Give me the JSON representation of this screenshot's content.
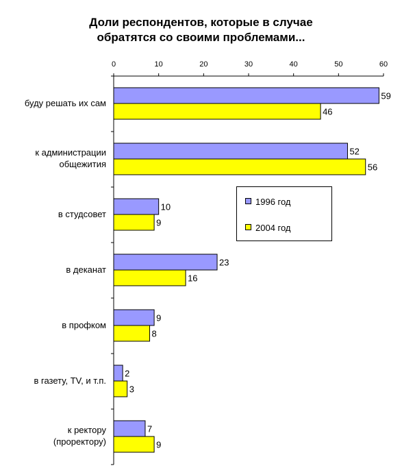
{
  "chart_data": {
    "type": "bar",
    "orientation": "horizontal",
    "title": [
      "Доли респондентов, которые в случае",
      "обратятся со своими проблемами..."
    ],
    "xlim": [
      0,
      60
    ],
    "x_ticks": [
      0,
      10,
      20,
      30,
      40,
      50,
      60
    ],
    "x_axis_position": "top",
    "grid": false,
    "legend_position": "right",
    "categories": [
      [
        "буду решать их сам"
      ],
      [
        "к администрации",
        "общежития"
      ],
      [
        "в студсовет"
      ],
      [
        "в деканат"
      ],
      [
        "в профком"
      ],
      [
        "в газету, TV, и т.п."
      ],
      [
        "к ректору",
        "(проректору)"
      ]
    ],
    "series": [
      {
        "name": "1996 год",
        "color": "#9999ff",
        "values": [
          59,
          52,
          10,
          23,
          9,
          2,
          7
        ]
      },
      {
        "name": "2004 год",
        "color": "#ffff00",
        "values": [
          46,
          56,
          9,
          16,
          8,
          3,
          9
        ]
      }
    ]
  }
}
